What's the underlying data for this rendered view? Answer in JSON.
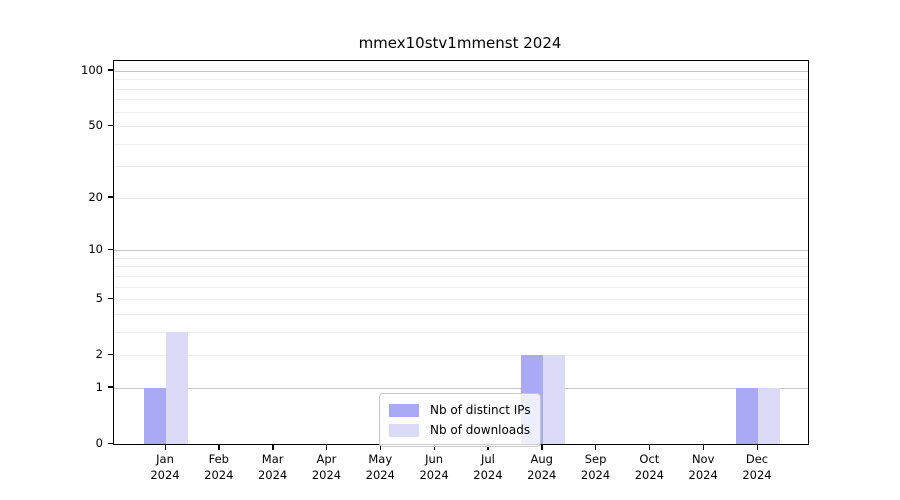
{
  "title": "mmex10stv1mmenst 2024",
  "legend": {
    "items": [
      {
        "label": "Nb of distinct IPs",
        "color": "#a9a9f4"
      },
      {
        "label": "Nb of downloads",
        "color": "#dbdbf8"
      }
    ]
  },
  "chart_data": {
    "type": "bar",
    "title": "mmex10stv1mmenst 2024",
    "categories": [
      "Jan 2024",
      "Feb 2024",
      "Mar 2024",
      "Apr 2024",
      "May 2024",
      "Jun 2024",
      "Jul 2024",
      "Aug 2024",
      "Sep 2024",
      "Oct 2024",
      "Nov 2024",
      "Dec 2024"
    ],
    "series": [
      {
        "name": "Nb of distinct IPs",
        "color": "#a9a9f4",
        "values": [
          1,
          0,
          0,
          0,
          0,
          0,
          0,
          2,
          0,
          0,
          0,
          1
        ]
      },
      {
        "name": "Nb of downloads",
        "color": "#dbdbf8",
        "values": [
          3,
          0,
          0,
          0,
          0,
          0,
          0,
          2,
          0,
          0,
          0,
          1
        ]
      }
    ],
    "xlabel": "",
    "ylabel": "",
    "yscale": "log1p",
    "ylim": [
      0,
      113
    ],
    "yticks": [
      0,
      1,
      2,
      5,
      10,
      20,
      50,
      100
    ],
    "major_gridlines": [
      1,
      10,
      100
    ],
    "minor_gridlines": [
      2,
      3,
      4,
      5,
      6,
      7,
      8,
      9,
      20,
      30,
      40,
      50,
      60,
      70,
      80,
      90
    ],
    "grid": true,
    "legend_position": "lower center inside",
    "bar_colors": {
      "distinct_ips": "#a9a9f4",
      "downloads": "#dbdbf8"
    },
    "grid_colors": {
      "major": "#c6c6c6",
      "minor": "#ededed"
    }
  }
}
